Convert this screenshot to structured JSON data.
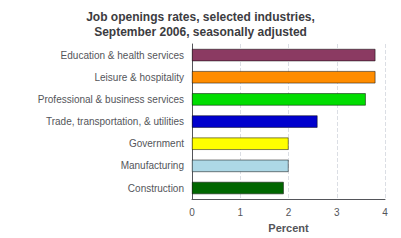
{
  "chart_data": {
    "type": "bar",
    "orientation": "horizontal",
    "title": "Job openings rates, selected industries,\nSeptember 2006, seasonally adjusted",
    "categories": [
      "Construction",
      "Manufacturing",
      "Government",
      "Trade, transportation, & utilities",
      "Professional & business services",
      "Leisure & hospitality",
      "Education & health services"
    ],
    "values": [
      1.9,
      2.0,
      2.0,
      2.6,
      3.6,
      3.8,
      3.8
    ],
    "colors": [
      "#006600",
      "#add8e6",
      "#ffff00",
      "#0000cd",
      "#00dd00",
      "#ff8c00",
      "#8b3a62"
    ],
    "xlabel": "Percent",
    "xlim": [
      0,
      4
    ],
    "xticks": [
      0,
      1,
      2,
      3,
      4
    ],
    "grid": true
  }
}
